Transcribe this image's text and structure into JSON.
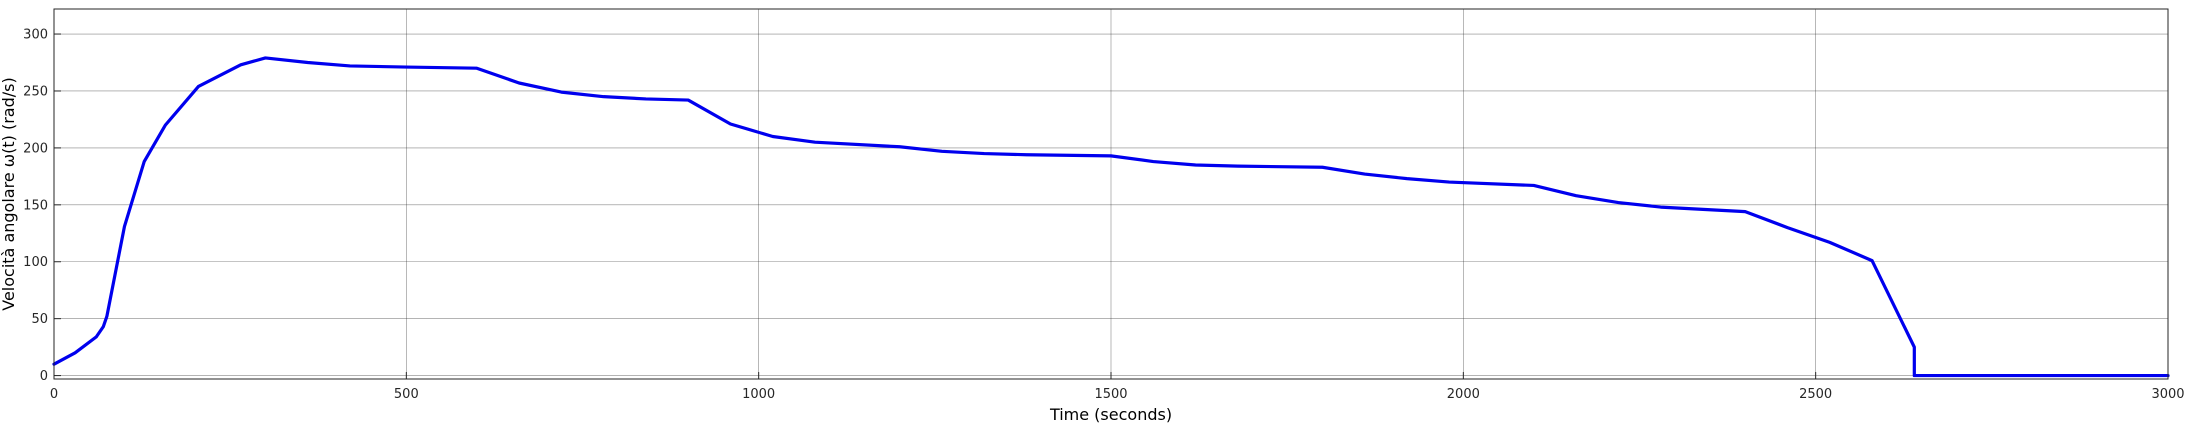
{
  "chart_data": {
    "type": "line",
    "xlabel": "Time (seconds)",
    "ylabel": "Velocità angolare ω(t) (rad/s)",
    "xlim": [
      0,
      3000
    ],
    "ylim": [
      -3,
      322
    ],
    "xticks": [
      0,
      500,
      1000,
      1500,
      2000,
      2500,
      3000
    ],
    "yticks": [
      0,
      50,
      100,
      150,
      200,
      250,
      300
    ],
    "grid": true,
    "legend": "none",
    "series_color": "#0000ee",
    "series": [
      {
        "x": [
          0,
          30,
          60,
          70,
          75,
          100,
          128,
          158,
          205,
          265,
          300,
          360,
          420,
          500,
          600,
          660,
          720,
          780,
          840,
          900,
          960,
          1020,
          1080,
          1200,
          1260,
          1320,
          1380,
          1500,
          1560,
          1620,
          1680,
          1800,
          1860,
          1920,
          1980,
          2100,
          2160,
          2220,
          2280,
          2400,
          2460,
          2520,
          2580,
          2640,
          2640,
          3000
        ],
        "y": [
          10,
          20,
          34,
          43,
          52,
          131,
          188,
          220,
          254,
          273,
          279,
          275,
          272,
          271,
          270,
          257,
          249,
          245,
          243,
          242,
          221,
          210,
          205,
          201,
          197,
          195,
          194,
          193,
          188,
          185,
          184,
          183,
          177,
          173,
          170,
          167,
          158,
          152,
          148,
          144,
          130,
          117,
          101,
          25,
          0,
          0
        ]
      }
    ]
  }
}
